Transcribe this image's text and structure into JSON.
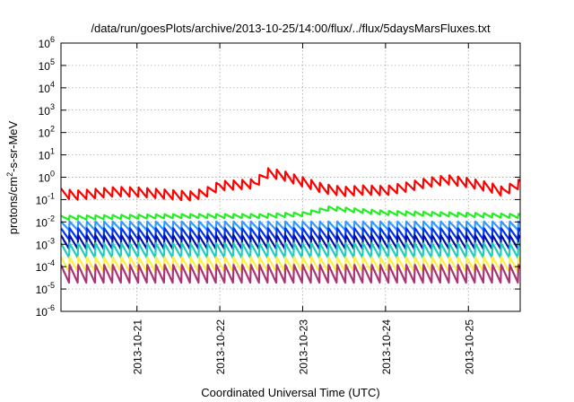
{
  "chart_data": {
    "type": "line",
    "title": "/data/run/goesPlots/archive/2013-10-25/14:00/flux/../flux/5daysMarsFluxes.txt",
    "xlabel": "Coordinated Universal Time (UTC)",
    "ylabel": {
      "base": "protons/cm",
      "sup": "2",
      "rest": "-s-sr-MeV"
    },
    "yscale": "log",
    "ylim": [
      1e-06,
      1000000.0
    ],
    "xlim": [
      "2013-10-20T02:00",
      "2013-10-25T15:00"
    ],
    "grid": true,
    "y_ticks": [
      {
        "base": "10",
        "exp": "-6",
        "value": 1e-06
      },
      {
        "base": "10",
        "exp": "-5",
        "value": 1e-05
      },
      {
        "base": "10",
        "exp": "-4",
        "value": 0.0001
      },
      {
        "base": "10",
        "exp": "-3",
        "value": 0.001
      },
      {
        "base": "10",
        "exp": "-2",
        "value": 0.01
      },
      {
        "base": "10",
        "exp": "-1",
        "value": 0.1
      },
      {
        "base": "10",
        "exp": "0",
        "value": 1
      },
      {
        "base": "10",
        "exp": "1",
        "value": 10
      },
      {
        "base": "10",
        "exp": "2",
        "value": 100
      },
      {
        "base": "10",
        "exp": "3",
        "value": 1000
      },
      {
        "base": "10",
        "exp": "4",
        "value": 10000
      },
      {
        "base": "10",
        "exp": "5",
        "value": 100000
      },
      {
        "base": "10",
        "exp": "6",
        "value": 1000000
      }
    ],
    "x_ticks": [
      {
        "label": "2013-10-21",
        "value": "2013-10-21T00:00"
      },
      {
        "label": "2013-10-22",
        "value": "2013-10-22T00:00"
      },
      {
        "label": "2013-10-23",
        "value": "2013-10-23T00:00"
      },
      {
        "label": "2013-10-24",
        "value": "2013-10-24T00:00"
      },
      {
        "label": "2013-10-25",
        "value": "2013-10-25T00:00"
      }
    ],
    "sawtooth_period_hours": 2.5,
    "series": [
      {
        "color": "#ff0000",
        "style": "smooth",
        "points": [
          [
            "2013-10-20T02:00",
            0.19
          ],
          [
            "2013-10-20T06:00",
            0.15
          ],
          [
            "2013-10-20T12:00",
            0.18
          ],
          [
            "2013-10-20T18:00",
            0.22
          ],
          [
            "2013-10-21T00:00",
            0.21
          ],
          [
            "2013-10-21T06:00",
            0.18
          ],
          [
            "2013-10-21T12:00",
            0.15
          ],
          [
            "2013-10-21T16:00",
            0.14
          ],
          [
            "2013-10-21T20:00",
            0.2
          ],
          [
            "2013-10-22T00:00",
            0.4
          ],
          [
            "2013-10-22T06:00",
            0.45
          ],
          [
            "2013-10-22T10:00",
            0.5
          ],
          [
            "2013-10-22T14:00",
            1.5
          ],
          [
            "2013-10-22T18:00",
            1.2
          ],
          [
            "2013-10-23T00:00",
            0.6
          ],
          [
            "2013-10-23T06:00",
            0.3
          ],
          [
            "2013-10-23T12:00",
            0.22
          ],
          [
            "2013-10-23T18:00",
            0.26
          ],
          [
            "2013-10-24T00:00",
            0.24
          ],
          [
            "2013-10-24T06:00",
            0.35
          ],
          [
            "2013-10-24T12:00",
            0.55
          ],
          [
            "2013-10-24T18:00",
            0.75
          ],
          [
            "2013-10-25T00:00",
            0.55
          ],
          [
            "2013-10-25T06:00",
            0.35
          ],
          [
            "2013-10-25T10:00",
            0.22
          ],
          [
            "2013-10-25T15:00",
            0.5
          ]
        ],
        "sawtooth_amplitude": 0.45
      },
      {
        "color": "#22ee22",
        "style": "sawtooth",
        "points": [
          [
            "2013-10-20T02:00",
            0.015
          ],
          [
            "2013-10-21T12:00",
            0.018
          ],
          [
            "2013-10-22T12:00",
            0.018
          ],
          [
            "2013-10-23T00:00",
            0.022
          ],
          [
            "2013-10-23T08:00",
            0.04
          ],
          [
            "2013-10-24T00:00",
            0.025
          ],
          [
            "2013-10-25T15:00",
            0.018
          ]
        ],
        "sawtooth_amplitude": 0.2
      },
      {
        "color": "#3399ff",
        "style": "sawtooth",
        "points": [
          [
            "2013-10-20T02:00",
            0.0065
          ],
          [
            "2013-10-25T15:00",
            0.0065
          ]
        ],
        "sawtooth_amplitude": 0.42
      },
      {
        "color": "#0033ee",
        "style": "sawtooth",
        "points": [
          [
            "2013-10-20T02:00",
            0.0028
          ],
          [
            "2013-10-25T15:00",
            0.0028
          ]
        ],
        "sawtooth_amplitude": 0.55
      },
      {
        "color": "#0011aa",
        "style": "sawtooth",
        "points": [
          [
            "2013-10-20T02:00",
            0.0012
          ],
          [
            "2013-10-25T15:00",
            0.0012
          ]
        ],
        "sawtooth_amplitude": 0.65
      },
      {
        "color": "#22ccbb",
        "style": "sawtooth",
        "points": [
          [
            "2013-10-20T02:00",
            0.0005
          ],
          [
            "2013-10-25T15:00",
            0.0005
          ]
        ],
        "sawtooth_amplitude": 0.7
      },
      {
        "color": "#ffee44",
        "style": "sawtooth",
        "points": [
          [
            "2013-10-20T02:00",
            0.00012
          ],
          [
            "2013-10-25T15:00",
            0.00012
          ]
        ],
        "sawtooth_amplitude": 0.7
      },
      {
        "color": "#aa3377",
        "style": "sawtooth",
        "points": [
          [
            "2013-10-20T02:00",
            4.5e-05
          ],
          [
            "2013-10-25T15:00",
            4.5e-05
          ]
        ],
        "sawtooth_amplitude": 0.85
      }
    ]
  }
}
